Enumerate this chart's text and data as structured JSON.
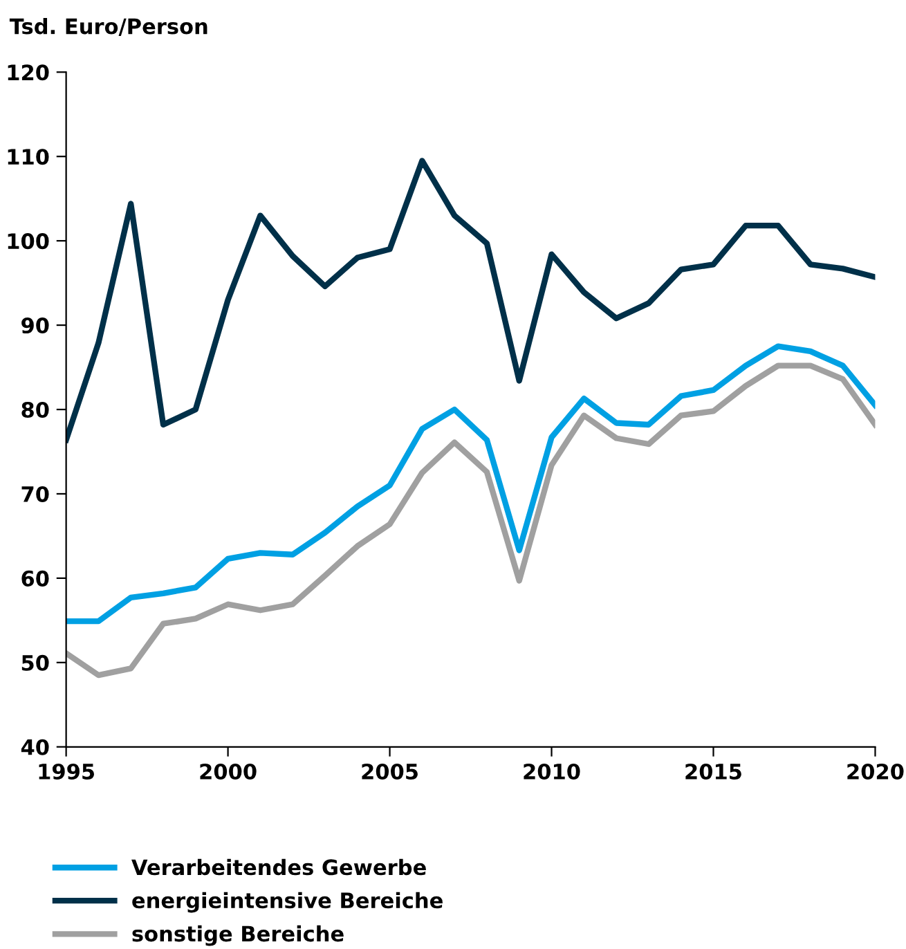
{
  "chart_data": {
    "type": "line",
    "ylabel": "Tsd. Euro/Person",
    "x": [
      1995,
      1996,
      1997,
      1998,
      1999,
      2000,
      2001,
      2002,
      2003,
      2004,
      2005,
      2006,
      2007,
      2008,
      2009,
      2010,
      2011,
      2012,
      2013,
      2014,
      2015,
      2016,
      2017,
      2018,
      2019,
      2020
    ],
    "series": [
      {
        "name": "Verarbeitendes Gewerbe",
        "color": "#00a0e3",
        "values": [
          54.9,
          54.9,
          57.7,
          58.2,
          58.9,
          62.3,
          63.0,
          62.8,
          65.4,
          68.5,
          71.0,
          77.7,
          80.0,
          76.4,
          63.3,
          76.7,
          81.3,
          78.4,
          78.2,
          81.6,
          82.3,
          85.2,
          87.5,
          86.9,
          85.2,
          80.5
        ]
      },
      {
        "name": "energieintensive Bereiche",
        "color": "#003049",
        "values": [
          76.4,
          87.9,
          104.4,
          78.2,
          80.0,
          93.0,
          103.0,
          98.2,
          94.6,
          98.0,
          99.0,
          109.5,
          103.0,
          99.7,
          83.4,
          98.4,
          93.9,
          90.8,
          92.6,
          96.6,
          97.2,
          101.8,
          101.8,
          97.2,
          96.7,
          95.7
        ]
      },
      {
        "name": "sonstige Bereiche",
        "color": "#a0a0a0",
        "values": [
          51.1,
          48.5,
          49.3,
          54.6,
          55.2,
          56.9,
          56.2,
          56.9,
          60.3,
          63.8,
          66.4,
          72.5,
          76.1,
          72.6,
          59.7,
          73.4,
          79.3,
          76.6,
          75.9,
          79.3,
          79.8,
          82.8,
          85.2,
          85.2,
          83.6,
          78.2
        ]
      }
    ],
    "xlim": [
      1995,
      2020
    ],
    "xticks": [
      1995,
      2000,
      2005,
      2010,
      2015,
      2020
    ],
    "ylim": [
      40,
      120
    ],
    "yticks": [
      40,
      50,
      60,
      70,
      80,
      90,
      100,
      110,
      120
    ],
    "grid": false,
    "legend": "bottom",
    "marker": "none",
    "line_style": "solid"
  }
}
